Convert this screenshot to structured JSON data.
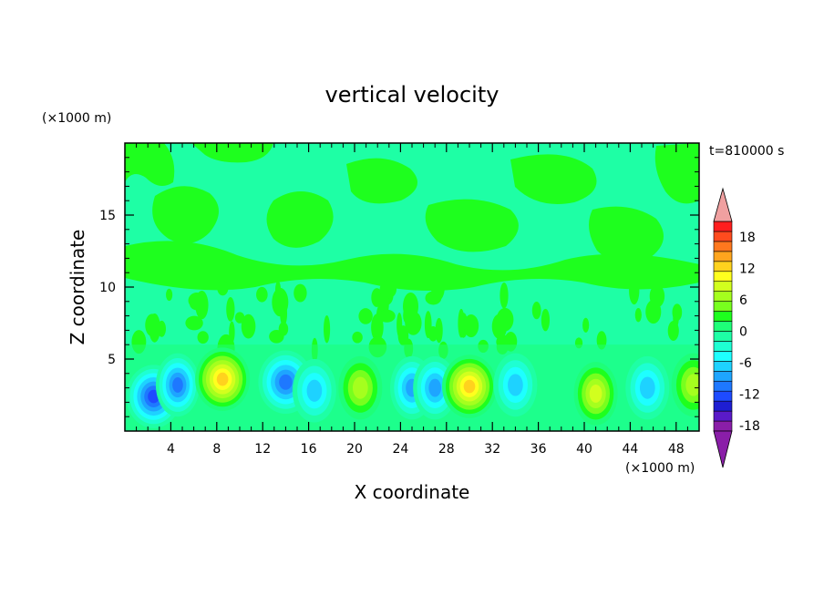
{
  "chart_data": {
    "type": "heatmap",
    "title": "vertical velocity",
    "xlabel": "X coordinate",
    "ylabel": "Z coordinate",
    "x_units": "(×1000 m)",
    "y_units": "(×1000 m)",
    "time_label": "t=810000 s",
    "xlim": [
      0,
      50
    ],
    "ylim": [
      0,
      20
    ],
    "x_ticks": [
      4,
      8,
      12,
      16,
      20,
      24,
      28,
      32,
      36,
      40,
      44,
      48
    ],
    "y_ticks": [
      5,
      10,
      15
    ],
    "colorbar": {
      "levels": [
        -20,
        -18,
        -16,
        -14,
        -12,
        -10,
        -8,
        -6,
        -4,
        -2,
        0,
        2,
        4,
        6,
        8,
        10,
        12,
        14,
        16,
        18,
        20
      ],
      "tick_labels": [
        "18",
        "12",
        "6",
        "0",
        "-6",
        "-12",
        "-18"
      ],
      "tick_values": [
        18,
        12,
        6,
        0,
        -6,
        -12,
        -18
      ],
      "colors": [
        "#8a1ea8",
        "#5a1ac8",
        "#1e1ed2",
        "#1e4bff",
        "#1e78ff",
        "#1ea5ff",
        "#1ed2ff",
        "#1effff",
        "#1effd2",
        "#1effa5",
        "#1eff78",
        "#1eff1e",
        "#78ff1e",
        "#a5ff1e",
        "#d2ff1e",
        "#ffff1e",
        "#ffd21e",
        "#ffa51e",
        "#ff781e",
        "#ff4b1e",
        "#ff1e1e"
      ],
      "over_color": "#f0a0a0",
      "under_color": "#8a1ea8"
    },
    "features": [
      {
        "x": 2.5,
        "z": 2.4,
        "value": -14
      },
      {
        "x": 4.6,
        "z": 3.2,
        "value": -11
      },
      {
        "x": 8.5,
        "z": 3.6,
        "value": 14
      },
      {
        "x": 14.0,
        "z": 3.4,
        "value": -12
      },
      {
        "x": 16.5,
        "z": 2.8,
        "value": -8
      },
      {
        "x": 20.5,
        "z": 3.0,
        "value": 8
      },
      {
        "x": 25.0,
        "z": 3.0,
        "value": -9
      },
      {
        "x": 27.0,
        "z": 3.0,
        "value": -10
      },
      {
        "x": 30.0,
        "z": 3.1,
        "value": 14
      },
      {
        "x": 34.0,
        "z": 3.2,
        "value": -8
      },
      {
        "x": 41.0,
        "z": 2.6,
        "value": 9
      },
      {
        "x": 45.5,
        "z": 3.0,
        "value": -8
      },
      {
        "x": 49.5,
        "z": 3.2,
        "value": 7
      }
    ]
  }
}
